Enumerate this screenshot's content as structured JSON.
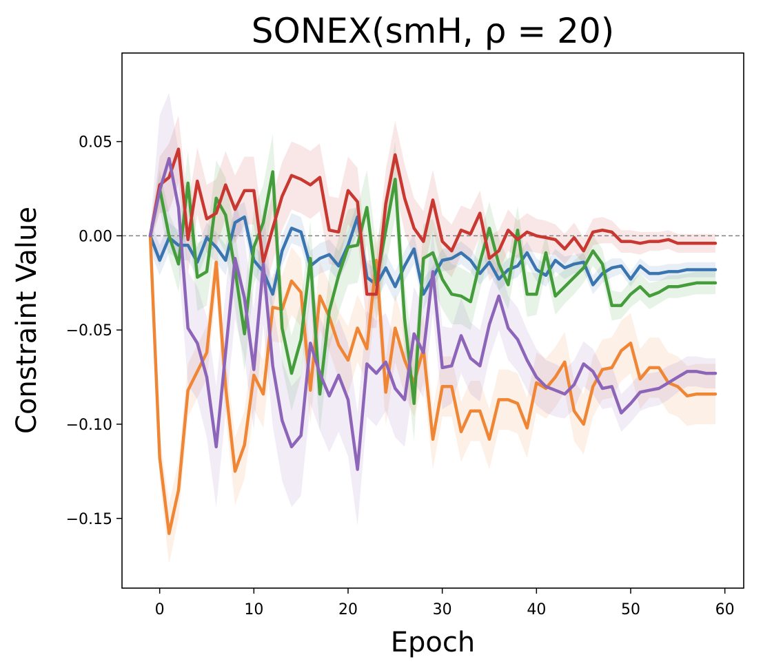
{
  "chart_data": {
    "type": "line",
    "title": "SONEX(smH, ρ =  20)",
    "xlabel": "Epoch",
    "ylabel": "Constraint Value",
    "xlim": [
      -4,
      62
    ],
    "ylim": [
      -0.187,
      0.097
    ],
    "xticks": [
      0,
      10,
      20,
      30,
      40,
      50,
      60
    ],
    "yticks": [
      0.05,
      0.0,
      -0.05,
      -0.1,
      -0.15
    ],
    "xtick_labels": [
      "0",
      "10",
      "20",
      "30",
      "40",
      "50",
      "60"
    ],
    "ytick_labels": [
      "0.05",
      "0.00",
      "−0.05",
      "−0.10",
      "−0.15"
    ],
    "reference_line": 0.0,
    "grid": false,
    "legend": "none",
    "x": [
      -1,
      0,
      1,
      2,
      3,
      4,
      5,
      6,
      7,
      8,
      9,
      10,
      11,
      12,
      13,
      14,
      15,
      16,
      17,
      18,
      19,
      20,
      21,
      22,
      23,
      24,
      25,
      26,
      27,
      28,
      29,
      30,
      31,
      32,
      33,
      34,
      35,
      36,
      37,
      38,
      39,
      40,
      41,
      42,
      43,
      44,
      45,
      46,
      47,
      48,
      49,
      50,
      51,
      52,
      53,
      54,
      55,
      56,
      57,
      58,
      59
    ],
    "series": [
      {
        "color": "#3a75b0",
        "values": [
          0.0,
          -0.013,
          -0.001,
          -0.005,
          -0.005,
          -0.014,
          -0.001,
          -0.006,
          -0.013,
          0.007,
          0.01,
          -0.013,
          -0.019,
          -0.031,
          -0.008,
          0.004,
          0.002,
          -0.016,
          -0.012,
          -0.01,
          -0.016,
          -0.005,
          0.01,
          -0.022,
          -0.026,
          -0.017,
          -0.027,
          -0.016,
          -0.007,
          -0.031,
          -0.022,
          -0.013,
          -0.012,
          -0.009,
          -0.013,
          -0.02,
          -0.014,
          -0.023,
          -0.018,
          -0.016,
          -0.009,
          -0.018,
          -0.021,
          -0.013,
          -0.017,
          -0.015,
          -0.014,
          -0.026,
          -0.02,
          -0.017,
          -0.016,
          -0.023,
          -0.016,
          -0.02,
          -0.02,
          -0.019,
          -0.019,
          -0.018,
          -0.018,
          -0.018,
          -0.018
        ],
        "band": [
          0.008,
          0.008,
          0.008,
          0.008,
          0.008,
          0.008,
          0.008,
          0.008,
          0.008,
          0.008,
          0.008,
          0.008,
          0.008,
          0.008,
          0.008,
          0.008,
          0.008,
          0.008,
          0.008,
          0.008,
          0.008,
          0.008,
          0.008,
          0.008,
          0.008,
          0.008,
          0.008,
          0.008,
          0.008,
          0.008,
          0.006,
          0.006,
          0.006,
          0.006,
          0.006,
          0.006,
          0.006,
          0.006,
          0.006,
          0.006,
          0.006,
          0.006,
          0.006,
          0.006,
          0.006,
          0.005,
          0.005,
          0.005,
          0.005,
          0.005,
          0.004,
          0.004,
          0.004,
          0.004,
          0.004,
          0.004,
          0.004,
          0.004,
          0.004,
          0.004,
          0.004
        ]
      },
      {
        "color": "#ef8636",
        "values": [
          0.0,
          -0.118,
          -0.158,
          -0.135,
          -0.082,
          -0.072,
          -0.062,
          -0.014,
          -0.08,
          -0.125,
          -0.111,
          -0.074,
          -0.084,
          -0.038,
          -0.039,
          -0.024,
          -0.03,
          -0.082,
          -0.032,
          -0.043,
          -0.058,
          -0.066,
          -0.049,
          -0.06,
          -0.013,
          -0.083,
          -0.049,
          -0.066,
          -0.078,
          -0.06,
          -0.108,
          -0.08,
          -0.08,
          -0.104,
          -0.093,
          -0.093,
          -0.108,
          -0.087,
          -0.087,
          -0.089,
          -0.102,
          -0.078,
          -0.081,
          -0.075,
          -0.067,
          -0.093,
          -0.1,
          -0.08,
          -0.071,
          -0.07,
          -0.061,
          -0.057,
          -0.076,
          -0.07,
          -0.07,
          -0.078,
          -0.08,
          -0.085,
          -0.084,
          -0.084,
          -0.084
        ],
        "band": [
          0.002,
          0.012,
          0.016,
          0.015,
          0.014,
          0.014,
          0.014,
          0.016,
          0.016,
          0.018,
          0.018,
          0.018,
          0.018,
          0.018,
          0.018,
          0.018,
          0.018,
          0.018,
          0.018,
          0.018,
          0.018,
          0.018,
          0.018,
          0.018,
          0.018,
          0.018,
          0.018,
          0.018,
          0.018,
          0.018,
          0.016,
          0.016,
          0.016,
          0.016,
          0.016,
          0.016,
          0.016,
          0.016,
          0.016,
          0.016,
          0.016,
          0.016,
          0.016,
          0.016,
          0.016,
          0.016,
          0.016,
          0.016,
          0.016,
          0.016,
          0.016,
          0.016,
          0.016,
          0.016,
          0.016,
          0.016,
          0.016,
          0.016,
          0.016,
          0.016,
          0.016
        ]
      },
      {
        "color": "#459c3b",
        "values": [
          0.0,
          0.025,
          0.0,
          -0.015,
          0.028,
          -0.022,
          -0.019,
          0.02,
          0.011,
          -0.018,
          -0.052,
          -0.006,
          0.007,
          0.034,
          -0.049,
          -0.073,
          -0.055,
          -0.012,
          -0.084,
          -0.04,
          -0.021,
          -0.006,
          -0.005,
          0.015,
          -0.025,
          0.003,
          0.03,
          -0.044,
          -0.089,
          -0.012,
          -0.009,
          -0.023,
          -0.031,
          -0.032,
          -0.035,
          -0.014,
          0.004,
          -0.015,
          -0.026,
          0.003,
          -0.031,
          -0.031,
          -0.009,
          -0.032,
          -0.027,
          -0.022,
          -0.017,
          -0.008,
          -0.015,
          -0.037,
          -0.037,
          -0.031,
          -0.027,
          -0.032,
          -0.03,
          -0.027,
          -0.027,
          -0.026,
          -0.025,
          -0.025,
          -0.025
        ],
        "band": [
          0.004,
          0.01,
          0.012,
          0.015,
          0.017,
          0.018,
          0.018,
          0.02,
          0.02,
          0.02,
          0.02,
          0.02,
          0.02,
          0.02,
          0.02,
          0.02,
          0.02,
          0.02,
          0.02,
          0.02,
          0.02,
          0.02,
          0.02,
          0.02,
          0.02,
          0.02,
          0.02,
          0.02,
          0.02,
          0.018,
          0.018,
          0.016,
          0.016,
          0.015,
          0.015,
          0.015,
          0.014,
          0.014,
          0.013,
          0.013,
          0.012,
          0.011,
          0.01,
          0.01,
          0.009,
          0.009,
          0.008,
          0.008,
          0.008,
          0.008,
          0.007,
          0.007,
          0.007,
          0.007,
          0.006,
          0.006,
          0.006,
          0.006,
          0.006,
          0.006,
          0.006
        ]
      },
      {
        "color": "#c93731",
        "values": [
          0.0,
          0.027,
          0.031,
          0.046,
          -0.002,
          0.029,
          0.009,
          0.012,
          0.027,
          0.014,
          0.024,
          0.024,
          -0.014,
          0.004,
          0.021,
          0.032,
          0.03,
          0.027,
          0.031,
          0.003,
          0.002,
          0.024,
          0.018,
          -0.031,
          -0.031,
          0.017,
          0.043,
          0.02,
          0.004,
          -0.003,
          0.019,
          -0.003,
          -0.008,
          0.003,
          0.001,
          0.012,
          -0.012,
          -0.008,
          0.003,
          -0.002,
          0.002,
          0.0,
          -0.001,
          -0.002,
          -0.007,
          -0.001,
          -0.008,
          0.002,
          0.003,
          0.002,
          -0.003,
          -0.003,
          -0.004,
          -0.003,
          -0.003,
          -0.002,
          -0.004,
          -0.004,
          -0.004,
          -0.004,
          -0.004
        ],
        "band": [
          0.004,
          0.015,
          0.018,
          0.018,
          0.018,
          0.018,
          0.018,
          0.018,
          0.018,
          0.018,
          0.018,
          0.018,
          0.018,
          0.018,
          0.018,
          0.018,
          0.018,
          0.018,
          0.018,
          0.018,
          0.018,
          0.018,
          0.018,
          0.018,
          0.018,
          0.018,
          0.018,
          0.018,
          0.016,
          0.016,
          0.016,
          0.014,
          0.014,
          0.013,
          0.013,
          0.012,
          0.012,
          0.011,
          0.011,
          0.01,
          0.01,
          0.009,
          0.009,
          0.008,
          0.008,
          0.008,
          0.007,
          0.007,
          0.007,
          0.006,
          0.006,
          0.006,
          0.006,
          0.005,
          0.005,
          0.005,
          0.005,
          0.005,
          0.005,
          0.005,
          0.005
        ]
      },
      {
        "color": "#8d65b8",
        "values": [
          0.0,
          0.024,
          0.041,
          0.015,
          -0.049,
          -0.057,
          -0.075,
          -0.112,
          -0.062,
          -0.012,
          -0.033,
          -0.071,
          -0.015,
          -0.069,
          -0.098,
          -0.112,
          -0.106,
          -0.057,
          -0.073,
          -0.085,
          -0.074,
          -0.087,
          -0.124,
          -0.068,
          -0.073,
          -0.067,
          -0.081,
          -0.087,
          -0.052,
          -0.062,
          -0.019,
          -0.07,
          -0.069,
          -0.053,
          -0.065,
          -0.069,
          -0.047,
          -0.032,
          -0.049,
          -0.055,
          -0.066,
          -0.075,
          -0.08,
          -0.082,
          -0.084,
          -0.079,
          -0.068,
          -0.072,
          -0.081,
          -0.08,
          -0.094,
          -0.089,
          -0.083,
          -0.082,
          -0.081,
          -0.078,
          -0.075,
          -0.072,
          -0.072,
          -0.073,
          -0.073
        ],
        "band": [
          0.005,
          0.04,
          0.035,
          0.03,
          0.03,
          0.03,
          0.032,
          0.032,
          0.032,
          0.032,
          0.032,
          0.032,
          0.032,
          0.032,
          0.032,
          0.032,
          0.032,
          0.032,
          0.03,
          0.03,
          0.03,
          0.03,
          0.03,
          0.028,
          0.028,
          0.026,
          0.026,
          0.025,
          0.025,
          0.024,
          0.022,
          0.022,
          0.02,
          0.02,
          0.019,
          0.019,
          0.018,
          0.018,
          0.017,
          0.017,
          0.016,
          0.015,
          0.014,
          0.014,
          0.013,
          0.013,
          0.012,
          0.012,
          0.011,
          0.011,
          0.01,
          0.01,
          0.01,
          0.009,
          0.009,
          0.009,
          0.008,
          0.008,
          0.008,
          0.008,
          0.008
        ]
      }
    ]
  }
}
